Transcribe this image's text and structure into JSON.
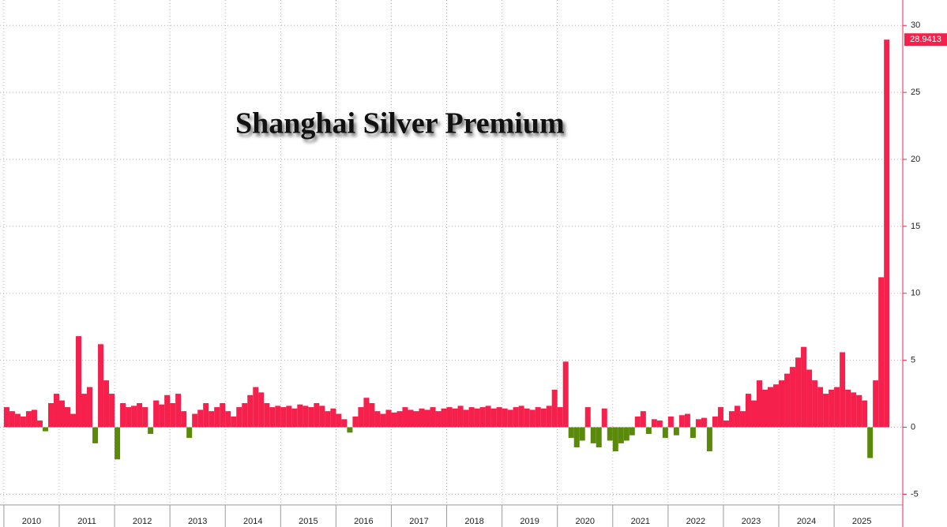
{
  "chart_data": {
    "type": "bar",
    "title": "Shanghai Silver Premium",
    "x": [
      2010.0,
      2010.1,
      2010.2,
      2010.3,
      2010.4,
      2010.5,
      2010.6,
      2010.7,
      2010.8,
      2010.9,
      2011.0,
      2011.1,
      2011.2,
      2011.3,
      2011.4,
      2011.5,
      2011.6,
      2011.7,
      2011.8,
      2011.9,
      2012.0,
      2012.1,
      2012.2,
      2012.3,
      2012.4,
      2012.5,
      2012.6,
      2012.7,
      2012.8,
      2012.9,
      2013.0,
      2013.1,
      2013.2,
      2013.3,
      2013.4,
      2013.5,
      2013.6,
      2013.7,
      2013.8,
      2013.9,
      2014.0,
      2014.1,
      2014.2,
      2014.3,
      2014.4,
      2014.5,
      2014.6,
      2014.7,
      2014.8,
      2014.9,
      2015.0,
      2015.1,
      2015.2,
      2015.3,
      2015.4,
      2015.5,
      2015.6,
      2015.7,
      2015.8,
      2015.9,
      2016.0,
      2016.1,
      2016.2,
      2016.3,
      2016.4,
      2016.5,
      2016.6,
      2016.7,
      2016.8,
      2016.9,
      2017.0,
      2017.1,
      2017.2,
      2017.3,
      2017.4,
      2017.5,
      2017.6,
      2017.7,
      2017.8,
      2017.9,
      2018.0,
      2018.1,
      2018.2,
      2018.3,
      2018.4,
      2018.5,
      2018.6,
      2018.7,
      2018.8,
      2018.9,
      2019.0,
      2019.1,
      2019.2,
      2019.3,
      2019.4,
      2019.5,
      2019.6,
      2019.7,
      2019.8,
      2019.9,
      2020.0,
      2020.1,
      2020.2,
      2020.3,
      2020.4,
      2020.5,
      2020.6,
      2020.7,
      2020.8,
      2020.9,
      2021.0,
      2021.1,
      2021.2,
      2021.3,
      2021.4,
      2021.5,
      2021.6,
      2021.7,
      2021.8,
      2021.9,
      2022.0,
      2022.1,
      2022.2,
      2022.3,
      2022.4,
      2022.5,
      2022.6,
      2022.7,
      2022.8,
      2022.9,
      2023.0,
      2023.1,
      2023.2,
      2023.3,
      2023.4,
      2023.5,
      2023.6,
      2023.7,
      2023.8,
      2023.9,
      2024.0,
      2024.1,
      2024.2,
      2024.3,
      2024.4,
      2024.5,
      2024.6,
      2024.7,
      2024.8,
      2024.9,
      2025.0,
      2025.1,
      2025.2,
      2025.3,
      2025.4,
      2025.5,
      2025.6,
      2025.7,
      2025.8,
      2025.9
    ],
    "values": [
      1.5,
      1.2,
      1.0,
      0.8,
      1.2,
      1.3,
      0.5,
      -0.3,
      1.8,
      2.5,
      2.0,
      1.5,
      1.0,
      6.8,
      2.5,
      3.0,
      -1.2,
      6.2,
      3.5,
      2.5,
      -2.4,
      1.8,
      1.5,
      1.6,
      1.8,
      1.5,
      -0.5,
      2.0,
      1.7,
      2.4,
      1.8,
      2.5,
      1.2,
      -0.8,
      1.0,
      1.3,
      1.8,
      1.2,
      1.5,
      1.8,
      1.2,
      0.8,
      1.5,
      1.8,
      2.4,
      3.0,
      2.6,
      1.8,
      1.5,
      1.6,
      1.5,
      1.6,
      1.4,
      1.7,
      1.6,
      1.5,
      1.8,
      1.6,
      1.2,
      1.4,
      1.0,
      0.6,
      -0.4,
      0.8,
      1.5,
      2.2,
      1.8,
      1.2,
      1.0,
      1.3,
      1.1,
      1.2,
      1.5,
      1.3,
      1.2,
      1.4,
      1.3,
      1.5,
      1.2,
      1.4,
      1.5,
      1.4,
      1.6,
      1.3,
      1.5,
      1.4,
      1.5,
      1.6,
      1.4,
      1.5,
      1.4,
      1.3,
      1.5,
      1.6,
      1.4,
      1.3,
      1.5,
      1.4,
      1.6,
      2.8,
      1.5,
      4.9,
      -0.8,
      -1.5,
      -1.0,
      1.5,
      -1.2,
      -1.5,
      1.4,
      -1.0,
      -1.8,
      -1.2,
      -1.0,
      -0.6,
      0.8,
      1.2,
      -0.5,
      0.6,
      0.5,
      -0.8,
      0.8,
      -0.6,
      0.9,
      1.0,
      -0.8,
      0.6,
      0.7,
      -1.8,
      0.8,
      1.5,
      0.5,
      1.2,
      1.6,
      1.2,
      2.5,
      2.0,
      3.5,
      2.8,
      3.0,
      3.2,
      3.5,
      4.0,
      4.5,
      5.2,
      6.0,
      4.3,
      3.5,
      3.0,
      2.5,
      2.8,
      3.0,
      5.6,
      2.8,
      2.6,
      2.4,
      2.0,
      -2.3,
      3.5,
      11.2,
      28.9413
    ],
    "colors": {
      "positive": "#f5204c",
      "negative": "#5b8a0a"
    },
    "xlim": [
      2009.93,
      2026.24
    ],
    "xticks": [
      2010,
      2011,
      2012,
      2013,
      2014,
      2015,
      2016,
      2017,
      2018,
      2019,
      2020,
      2021,
      2022,
      2023,
      2024,
      2025
    ],
    "ylim": [
      -5.8,
      31.9
    ],
    "yticks": [
      -5,
      0,
      5,
      10,
      15,
      20,
      25,
      30
    ],
    "grid": true
  }
}
